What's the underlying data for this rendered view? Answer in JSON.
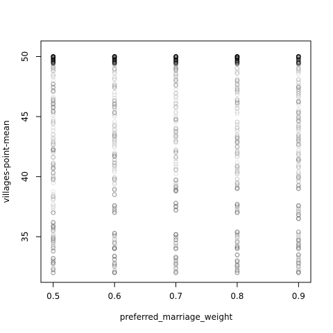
{
  "chart_data": {
    "type": "scatter",
    "title": "",
    "xlabel": "preferred_marriage_weight",
    "ylabel": "villages-point-mean",
    "xlim": [
      0.48,
      0.92
    ],
    "ylim": [
      31.2,
      51.3
    ],
    "xticks": [
      0.5,
      0.6,
      0.7,
      0.8,
      0.9
    ],
    "xtick_labels": [
      "0.5",
      "0.6",
      "0.7",
      "0.8",
      "0.9"
    ],
    "yticks": [
      35,
      40,
      45,
      50
    ],
    "ytick_labels": [
      "35",
      "40",
      "45",
      "50"
    ],
    "grid": false,
    "legend": "none",
    "marker": "open-circle",
    "marker_color": "#000000",
    "marker_alpha": 0.12,
    "x": [
      0.5,
      0.6,
      0.7,
      0.8,
      0.9
    ],
    "ranges_note_free": true,
    "y_ranges": [
      [
        [
          32.0,
          33.2
        ],
        [
          33.8,
          36.2
        ],
        [
          37.0,
          50.0
        ]
      ],
      [
        [
          32.0,
          33.4
        ],
        [
          34.0,
          35.3
        ],
        [
          37.0,
          37.6
        ],
        [
          38.5,
          50.0
        ]
      ],
      [
        [
          32.0,
          33.3
        ],
        [
          34.0,
          35.2
        ],
        [
          37.2,
          37.8
        ],
        [
          38.8,
          50.0
        ]
      ],
      [
        [
          32.0,
          33.5
        ],
        [
          34.0,
          35.4
        ],
        [
          37.0,
          37.7
        ],
        [
          39.0,
          50.0
        ]
      ],
      [
        [
          32.0,
          33.5
        ],
        [
          34.0,
          35.4
        ],
        [
          36.5,
          37.6
        ],
        [
          39.0,
          50.0
        ]
      ]
    ]
  }
}
